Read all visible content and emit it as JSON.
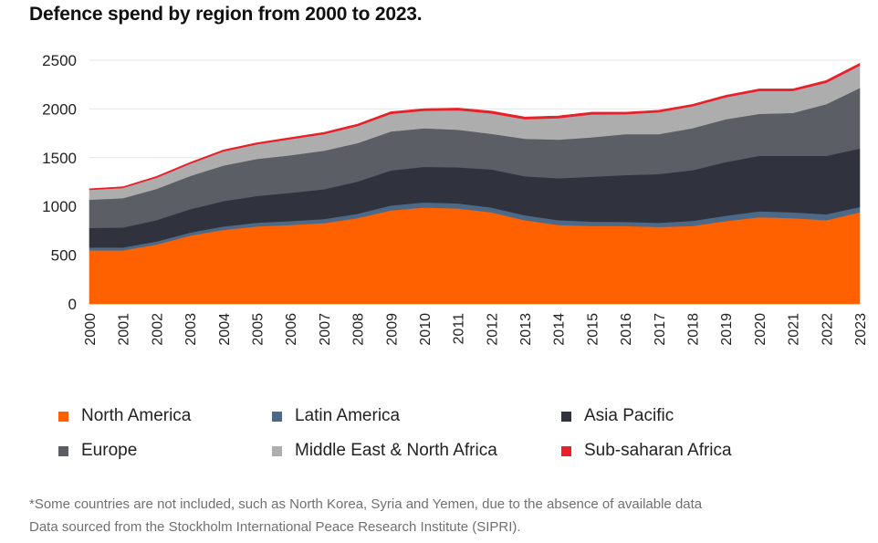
{
  "title": "Defence spend by region from 2000 to 2023.",
  "chart_data": {
    "type": "area",
    "stacked": true,
    "title": "Defence spend by region from 2000 to 2023.",
    "xlabel": "",
    "ylabel": "",
    "ylim": [
      0,
      2500
    ],
    "yticks": [
      0,
      500,
      1000,
      1500,
      2000,
      2500
    ],
    "grid": true,
    "legend_position": "bottom",
    "x": [
      "2000",
      "2001",
      "2002",
      "2003",
      "2004",
      "2005",
      "2006",
      "2007",
      "2008",
      "2009",
      "2010",
      "2011",
      "2012",
      "2013",
      "2014",
      "2015",
      "2016",
      "2017",
      "2018",
      "2019",
      "2020",
      "2021",
      "2022",
      "2023"
    ],
    "series": [
      {
        "name": "North America",
        "color": "#ff6000",
        "values": [
          550,
          550,
          610,
          700,
          760,
          795,
          810,
          830,
          880,
          960,
          990,
          980,
          940,
          860,
          810,
          800,
          800,
          790,
          800,
          850,
          890,
          880,
          860,
          940
        ]
      },
      {
        "name": "Latin America",
        "color": "#4c6a87",
        "values": [
          30,
          30,
          30,
          32,
          35,
          38,
          40,
          42,
          45,
          50,
          52,
          52,
          50,
          50,
          50,
          45,
          42,
          42,
          52,
          55,
          60,
          60,
          60,
          55
        ]
      },
      {
        "name": "Asia Pacific",
        "color": "#30333d",
        "values": [
          200,
          205,
          220,
          240,
          260,
          275,
          290,
          305,
          330,
          360,
          365,
          370,
          390,
          400,
          430,
          460,
          480,
          500,
          520,
          550,
          570,
          580,
          600,
          600
        ]
      },
      {
        "name": "Europe",
        "color": "#5c5e66",
        "values": [
          290,
          300,
          320,
          340,
          365,
          380,
          385,
          395,
          395,
          400,
          395,
          385,
          365,
          385,
          395,
          405,
          420,
          410,
          430,
          440,
          430,
          440,
          530,
          620
        ]
      },
      {
        "name": "Middle East & North Africa",
        "color": "#adadad",
        "values": [
          100,
          105,
          115,
          125,
          145,
          150,
          165,
          170,
          175,
          180,
          180,
          200,
          210,
          200,
          220,
          235,
          205,
          225,
          225,
          225,
          235,
          225,
          220,
          230
        ]
      },
      {
        "name": "Sub-saharan Africa",
        "color": "#e8202a",
        "values": [
          12,
          12,
          13,
          14,
          15,
          16,
          17,
          18,
          20,
          22,
          22,
          22,
          23,
          23,
          24,
          22,
          20,
          20,
          20,
          20,
          21,
          21,
          22,
          23
        ]
      }
    ]
  },
  "legend": {
    "north_america": "North America",
    "latin_america": "Latin America",
    "asia_pacific": "Asia Pacific",
    "europe": "Europe",
    "mena": "Middle East & North Africa",
    "ssa": "Sub-saharan Africa"
  },
  "notes": {
    "line1": "*Some countries are not included, such as North Korea, Syria and Yemen, due to the absence of available data",
    "line2": "Data sourced from the Stockholm International Peace Research Institute (SIPRI)."
  }
}
